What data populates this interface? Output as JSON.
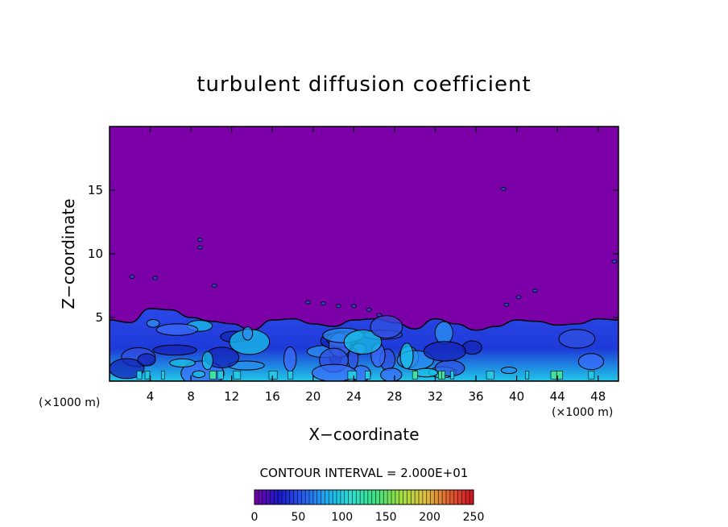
{
  "chart_data": {
    "type": "heatmap",
    "title": "turbulent diffusion coefficient",
    "xlabel": "X−coordinate",
    "ylabel": "Z−coordinate",
    "x_unit_left": "(×1000 m)",
    "x_unit_right": "(×1000 m)",
    "xlim": [
      0,
      50
    ],
    "ylim": [
      0,
      20
    ],
    "x_ticks": [
      4,
      8,
      12,
      16,
      20,
      24,
      28,
      32,
      36,
      40,
      44,
      48
    ],
    "y_ticks": [
      5,
      10,
      15
    ],
    "contour_interval_text": "CONTOUR INTERVAL = 2.000E+01",
    "colorbar": {
      "range": [
        0,
        250
      ],
      "ticks": [
        0,
        50,
        100,
        150,
        200,
        250
      ],
      "colors": [
        "#7a00a8",
        "#1a18c8",
        "#2a5cf0",
        "#1ab0f0",
        "#30e0d0",
        "#40e080",
        "#a0e040",
        "#e0c040",
        "#e06030",
        "#d01020"
      ]
    },
    "background_color": "#7b00a8",
    "turbulent_layer": {
      "x": [
        0,
        2,
        4,
        6,
        8,
        10,
        12,
        14,
        16,
        18,
        20,
        22,
        24,
        26,
        28,
        30,
        32,
        34,
        36,
        38,
        40,
        42,
        44,
        46,
        48,
        50
      ],
      "top_z": [
        4.8,
        4.6,
        5.7,
        5.6,
        5.0,
        4.7,
        4.5,
        4.0,
        4.8,
        4.9,
        4.5,
        4.3,
        4.8,
        4.9,
        4.6,
        4.1,
        4.9,
        4.5,
        4.0,
        4.3,
        4.8,
        4.7,
        4.4,
        4.5,
        4.9,
        4.8
      ]
    }
  }
}
